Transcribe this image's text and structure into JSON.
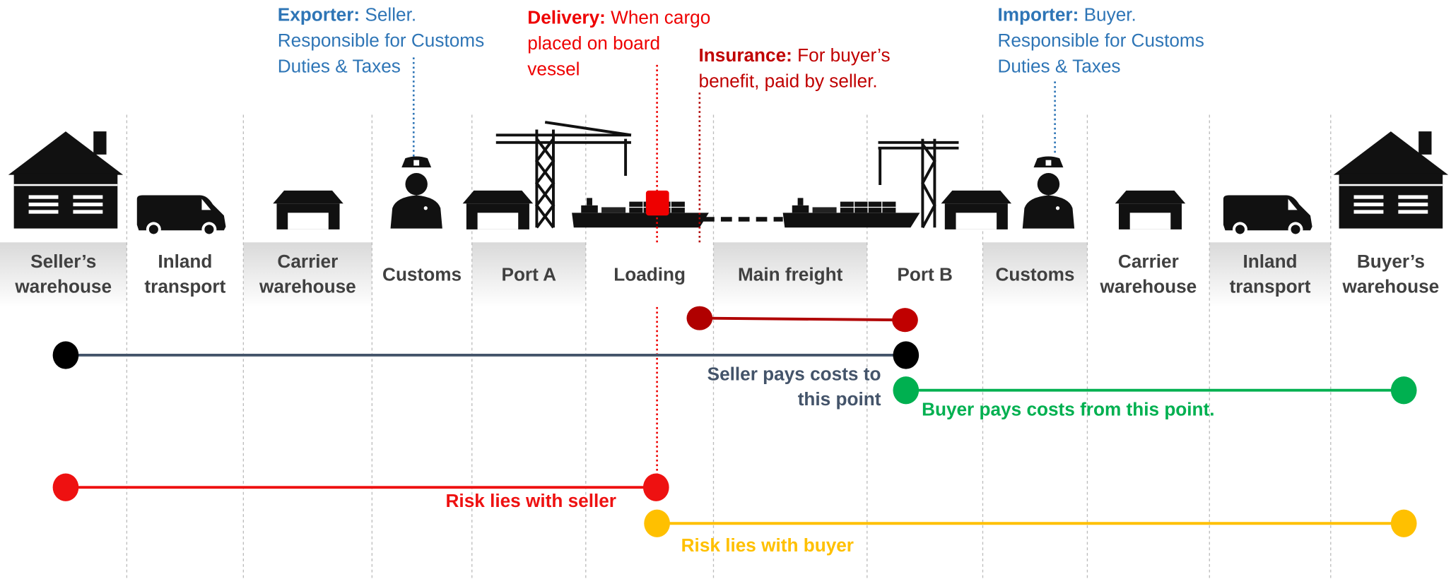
{
  "stages": [
    [
      "Seller’s",
      "warehouse"
    ],
    [
      "Inland",
      "transport"
    ],
    [
      "Carrier",
      "warehouse"
    ],
    [
      "Customs"
    ],
    [
      "Port A"
    ],
    [
      "Loading"
    ],
    [
      "Main freight"
    ],
    [
      "Port B"
    ],
    [
      "Customs"
    ],
    [
      "Carrier",
      "warehouse"
    ],
    [
      "Inland",
      "transport"
    ],
    [
      "Buyer’s",
      "warehouse"
    ]
  ],
  "annotations": [
    {
      "heading": "Exporter:",
      "lines": [
        "Seller.",
        "Responsible for Customs",
        "Duties & Taxes"
      ]
    },
    {
      "heading": "Delivery:",
      "lines": [
        "When cargo",
        "placed on board",
        "vessel"
      ]
    },
    {
      "heading": "Insurance:",
      "lines": [
        "For buyer’s",
        "benefit, paid by seller."
      ]
    },
    {
      "heading": "Importer:",
      "lines": [
        "Buyer.",
        "Responsible for Customs",
        "Duties & Taxes"
      ]
    }
  ],
  "responsibilities": [
    {
      "label": [
        "Seller pays costs to",
        "this point"
      ]
    },
    {
      "label": [
        "Buyer pays costs from this point."
      ]
    },
    {
      "label": [
        "Risk lies with seller"
      ]
    },
    {
      "label": [
        "Risk lies with buyer"
      ]
    }
  ]
}
